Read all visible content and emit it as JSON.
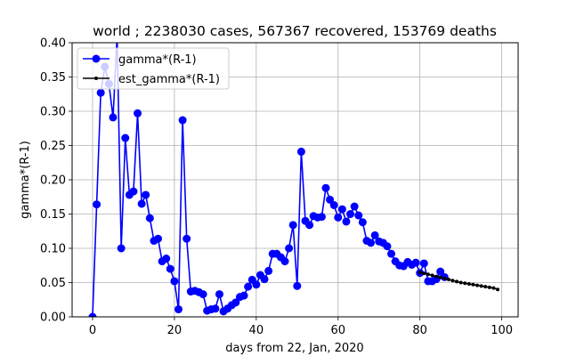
{
  "chart_data": {
    "type": "line",
    "title": "world ; 2238030 cases, 567367 recovered, 153769 deaths",
    "xlabel": "days from 22, Jan, 2020",
    "ylabel": "gamma*(R-1)",
    "xlim": [
      -5,
      104
    ],
    "ylim": [
      0,
      0.4
    ],
    "xticks": [
      0,
      20,
      40,
      60,
      80,
      100
    ],
    "yticks": [
      0.0,
      0.05,
      0.1,
      0.15,
      0.2,
      0.25,
      0.3,
      0.35,
      0.4
    ],
    "ytick_labels": [
      "0.00",
      "0.05",
      "0.10",
      "0.15",
      "0.20",
      "0.25",
      "0.30",
      "0.35",
      "0.40"
    ],
    "grid": true,
    "legend_position": "top-left",
    "series": [
      {
        "name": "gamma*(R-1)",
        "color": "#0000ff",
        "marker": "circle",
        "x": [
          0,
          1,
          2,
          3,
          4,
          5,
          6,
          7,
          8,
          9,
          10,
          11,
          12,
          13,
          14,
          15,
          16,
          17,
          18,
          19,
          20,
          21,
          22,
          23,
          24,
          25,
          26,
          27,
          28,
          29,
          30,
          31,
          32,
          33,
          34,
          35,
          36,
          37,
          38,
          39,
          40,
          41,
          42,
          43,
          44,
          45,
          46,
          47,
          48,
          49,
          50,
          51,
          52,
          53,
          54,
          55,
          56,
          57,
          58,
          59,
          60,
          61,
          62,
          63,
          64,
          65,
          66,
          67,
          68,
          69,
          70,
          71,
          72,
          73,
          74,
          75,
          76,
          77,
          78,
          79,
          80,
          81,
          82,
          83,
          84,
          85,
          86
        ],
        "y": [
          0.0,
          0.164,
          0.327,
          0.365,
          0.34,
          0.291,
          0.41,
          0.1,
          0.261,
          0.178,
          0.183,
          0.297,
          0.165,
          0.178,
          0.144,
          0.111,
          0.114,
          0.081,
          0.085,
          0.07,
          0.052,
          0.011,
          0.287,
          0.114,
          0.037,
          0.038,
          0.036,
          0.033,
          0.009,
          0.011,
          0.012,
          0.033,
          0.008,
          0.012,
          0.017,
          0.021,
          0.029,
          0.031,
          0.044,
          0.054,
          0.047,
          0.061,
          0.055,
          0.067,
          0.092,
          0.092,
          0.087,
          0.081,
          0.1,
          0.134,
          0.045,
          0.241,
          0.14,
          0.134,
          0.147,
          0.145,
          0.146,
          0.188,
          0.171,
          0.163,
          0.145,
          0.157,
          0.139,
          0.15,
          0.161,
          0.148,
          0.138,
          0.111,
          0.108,
          0.119,
          0.11,
          0.108,
          0.103,
          0.092,
          0.081,
          0.075,
          0.074,
          0.08,
          0.076,
          0.079,
          0.064,
          0.078,
          0.052,
          0.052,
          0.055,
          0.066,
          0.058
        ]
      },
      {
        "name": "est_gamma*(R-1)",
        "color": "#000000",
        "marker": "small-dot",
        "x": [
          80,
          81,
          82,
          83,
          84,
          85,
          86,
          87,
          88,
          89,
          90,
          91,
          92,
          93,
          94,
          95,
          96,
          97,
          98,
          99
        ],
        "y": [
          0.065,
          0.0635,
          0.062,
          0.0605,
          0.059,
          0.0575,
          0.056,
          0.0545,
          0.053,
          0.0515,
          0.05,
          0.049,
          0.048,
          0.047,
          0.046,
          0.045,
          0.044,
          0.043,
          0.042,
          0.04
        ]
      }
    ]
  }
}
